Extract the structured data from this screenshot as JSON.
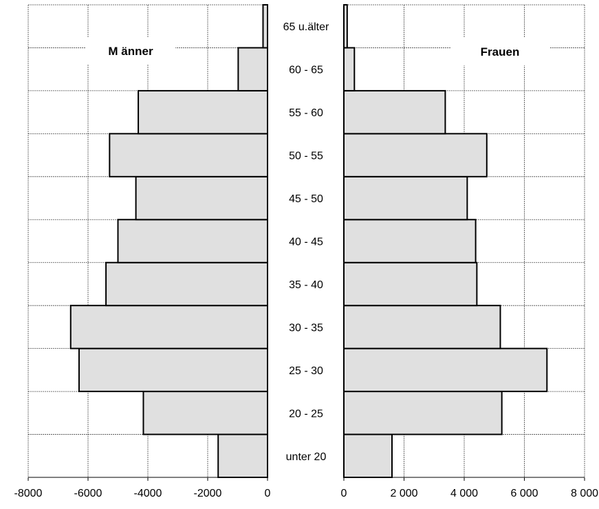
{
  "chart_data": {
    "type": "bar",
    "orientation": "horizontal-population-pyramid",
    "categories": [
      "unter 20",
      "20 - 25",
      "25 - 30",
      "30 - 35",
      "35 - 40",
      "40 - 45",
      "45 - 50",
      "50 - 55",
      "55 - 60",
      "60 - 65",
      "65 u.älter"
    ],
    "series": [
      {
        "name": "M änner",
        "values": [
          -1650,
          -4150,
          -6300,
          -6580,
          -5400,
          -5000,
          -4400,
          -5280,
          -4320,
          -980,
          -150
        ]
      },
      {
        "name": "Frauen",
        "values": [
          1600,
          5250,
          6750,
          5200,
          4420,
          4380,
          4100,
          4750,
          3370,
          350,
          110
        ]
      }
    ],
    "left_panel": {
      "title": "M änner",
      "xlim": [
        -8000,
        0
      ],
      "xticks": [
        -8000,
        -6000,
        -4000,
        -2000,
        0
      ],
      "xtick_labels": [
        "-8000",
        "-6000",
        "-4000",
        "-2000",
        "0"
      ]
    },
    "right_panel": {
      "title": "Frauen",
      "xlim": [
        0,
        8000
      ],
      "xticks": [
        0,
        2000,
        4000,
        6000,
        8000
      ],
      "xtick_labels": [
        "0",
        "2 000",
        "4 000",
        "6 000",
        "8 000"
      ]
    },
    "grid": true,
    "bar_color": "#e0e0e0",
    "edge_color": "#000000"
  }
}
